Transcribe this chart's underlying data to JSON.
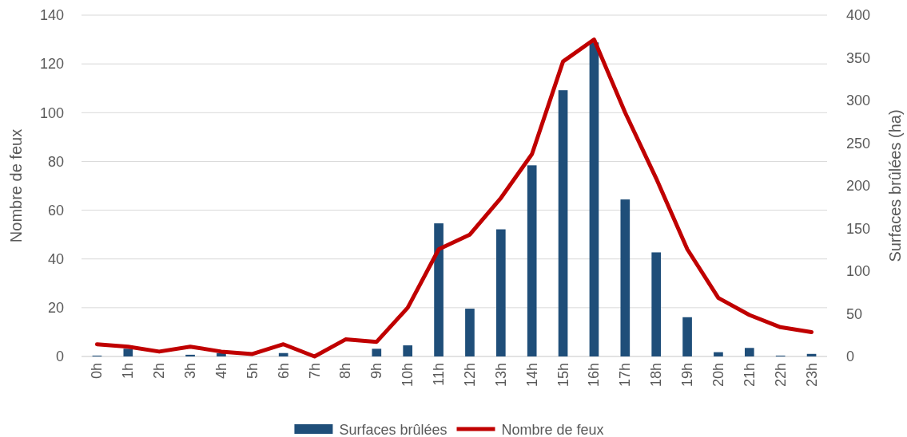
{
  "chart_data": {
    "type": "bar",
    "categories": [
      "0h",
      "1h",
      "2h",
      "3h",
      "4h",
      "5h",
      "6h",
      "7h",
      "8h",
      "9h",
      "10h",
      "11h",
      "12h",
      "13h",
      "14h",
      "15h",
      "16h",
      "17h",
      "18h",
      "19h",
      "20h",
      "21h",
      "22h",
      "23h"
    ],
    "series": [
      {
        "name": "Surfaces brûlées",
        "axis": "y2",
        "color": "#1f4e79",
        "values": [
          1,
          9,
          0,
          2,
          4,
          0,
          4,
          0,
          0,
          9,
          13,
          156,
          56,
          149,
          224,
          312,
          368,
          184,
          122,
          46,
          5,
          10,
          1,
          3
        ]
      },
      {
        "name": "Nombre de feux",
        "type": "line",
        "axis": "y",
        "color": "#c00000",
        "values": [
          5,
          4,
          2,
          4,
          2,
          1,
          5,
          0,
          7,
          6,
          20,
          44,
          50,
          65,
          83,
          121,
          130,
          100,
          73,
          44,
          24,
          17,
          12,
          10
        ]
      }
    ],
    "ylabel": "Nombre de feux",
    "y2label": "Surfaces brûlées (ha)",
    "ylim": [
      0,
      140
    ],
    "yticks": [
      0,
      20,
      40,
      60,
      80,
      100,
      120,
      140
    ],
    "y2lim": [
      0,
      400
    ],
    "y2ticks": [
      0,
      50,
      100,
      150,
      200,
      250,
      300,
      350,
      400
    ],
    "grid": "y",
    "legend": "bottom",
    "marker": "none",
    "line_style": "solid"
  }
}
